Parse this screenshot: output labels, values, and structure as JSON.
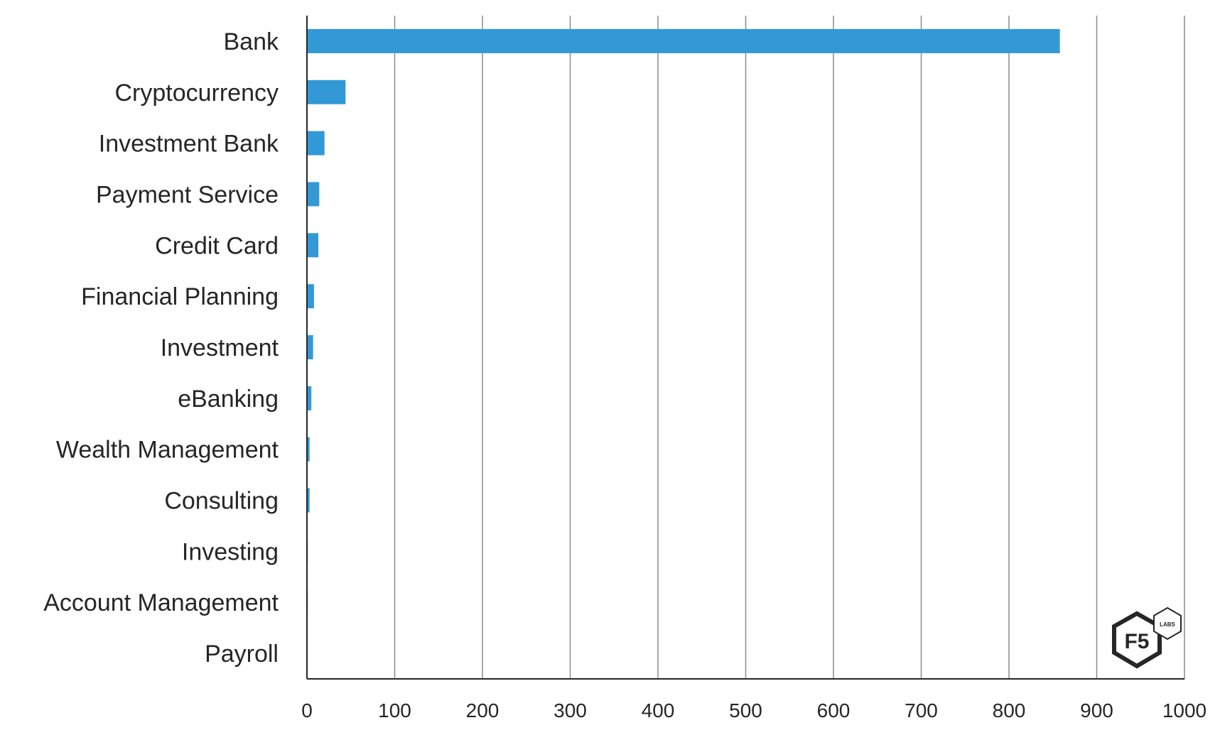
{
  "chart_data": {
    "type": "bar",
    "orientation": "horizontal",
    "categories": [
      "Bank",
      "Cryptocurrency",
      "Investment Bank",
      "Payment Service",
      "Credit Card",
      "Financial Planning",
      "Investment",
      "eBanking",
      "Wealth Management",
      "Consulting",
      "Investing",
      "Account Management",
      "Payroll"
    ],
    "values": [
      858,
      44,
      20,
      14,
      13,
      8,
      7,
      5,
      3,
      3,
      1,
      1,
      0
    ],
    "xlim": [
      0,
      1000
    ],
    "xticks": [
      "0",
      "100",
      "200",
      "300",
      "400",
      "500",
      "600",
      "700",
      "800",
      "900",
      "1000"
    ],
    "title": "",
    "xlabel": "",
    "ylabel": "",
    "grid": "vertical",
    "bar_color": "#3399d6"
  },
  "logo": {
    "main_text": "F5",
    "sub_text": "LABS"
  }
}
